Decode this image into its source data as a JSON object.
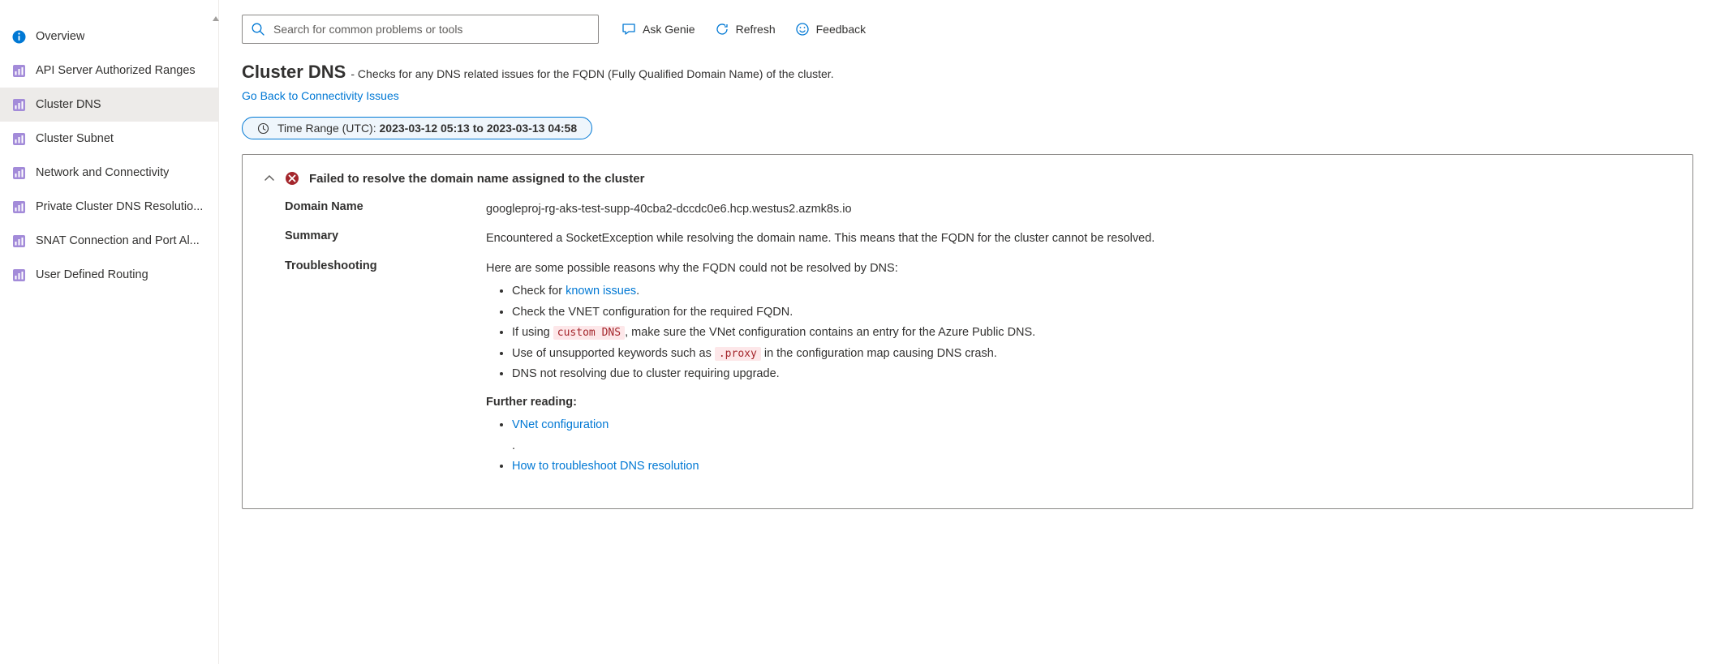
{
  "sidebar": {
    "items": [
      {
        "label": "Overview",
        "icon": "info",
        "active": false
      },
      {
        "label": "API Server Authorized Ranges",
        "icon": "chart",
        "active": false
      },
      {
        "label": "Cluster DNS",
        "icon": "chart",
        "active": true
      },
      {
        "label": "Cluster Subnet",
        "icon": "chart",
        "active": false
      },
      {
        "label": "Network and Connectivity",
        "icon": "chart",
        "active": false
      },
      {
        "label": "Private Cluster DNS Resolutio...",
        "icon": "chart",
        "active": false
      },
      {
        "label": "SNAT Connection and Port Al...",
        "icon": "chart",
        "active": false
      },
      {
        "label": "User Defined Routing",
        "icon": "chart",
        "active": false
      }
    ]
  },
  "topbar": {
    "search_placeholder": "Search for common problems or tools",
    "ask_genie": "Ask Genie",
    "refresh": "Refresh",
    "feedback": "Feedback"
  },
  "header": {
    "title": "Cluster DNS",
    "separator": " - ",
    "subtitle": "Checks for any DNS related issues for the FQDN (Fully Qualified Domain Name) of the cluster.",
    "back_link": "Go Back to Connectivity Issues"
  },
  "time_range": {
    "prefix": "Time Range (UTC): ",
    "value": "2023-03-12 05:13 to 2023-03-13 04:58"
  },
  "panel": {
    "status": "error",
    "title": "Failed to resolve the domain name assigned to the cluster",
    "rows": {
      "domain_name": {
        "label": "Domain Name",
        "value": "googleproj-rg-aks-test-supp-40cba2-dccdc0e6.hcp.westus2.azmk8s.io"
      },
      "summary": {
        "label": "Summary",
        "value": "Encountered a SocketException while resolving the domain name. This means that the FQDN for the cluster cannot be resolved."
      },
      "troubleshooting": {
        "label": "Troubleshooting",
        "intro": "Here are some possible reasons why the FQDN could not be resolved by DNS:",
        "bullets": {
          "b1_pre": "Check for ",
          "b1_link": "known issues",
          "b1_post": ".",
          "b2": "Check the VNET configuration for the required FQDN.",
          "b3_pre": "If using ",
          "b3_code": "custom DNS",
          "b3_post": ", make sure the VNet configuration contains an entry for the Azure Public DNS.",
          "b4_pre": "Use of unsupported keywords such as ",
          "b4_code": ".proxy",
          "b4_post": " in the configuration map causing DNS crash.",
          "b5": "DNS not resolving due to cluster requiring upgrade."
        },
        "further_heading": "Further reading:",
        "further": {
          "f1": "VNet configuration",
          "f_sep": ".",
          "f2": "How to troubleshoot DNS resolution"
        }
      }
    }
  },
  "colors": {
    "link": "#0078d4",
    "error": "#a4262c",
    "border": "#8a8886"
  }
}
